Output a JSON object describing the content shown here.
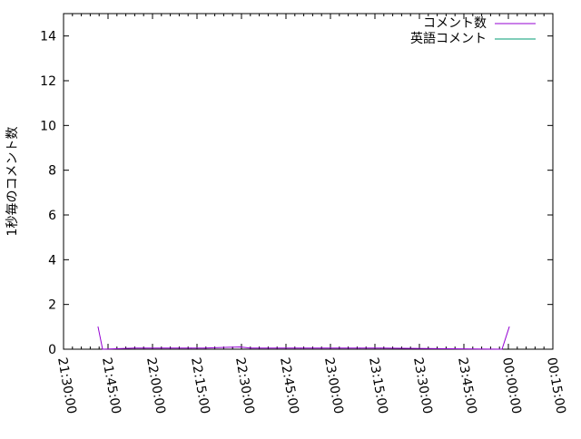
{
  "chart_data": {
    "type": "line",
    "title": "",
    "xlabel": "",
    "ylabel": "1秒毎のコメント数",
    "xlim": [
      "21:30:00",
      "00:15:00"
    ],
    "ylim": [
      0,
      15
    ],
    "x_ticks": [
      "21:30:00",
      "21:45:00",
      "22:00:00",
      "22:15:00",
      "22:30:00",
      "22:45:00",
      "23:00:00",
      "23:15:00",
      "23:30:00",
      "23:45:00",
      "00:00:00",
      "00:15:00"
    ],
    "y_ticks": [
      "0",
      "2",
      "4",
      "6",
      "8",
      "10",
      "12",
      "14"
    ],
    "grid": false,
    "legend": "top-right",
    "series": [
      {
        "name": "コメント数",
        "color": "#9400d3",
        "points": [
          [
            "21:41:38",
            1
          ],
          [
            "21:43:10",
            0
          ],
          [
            "21:54:00",
            0.05
          ],
          [
            "21:57:30",
            0.05
          ],
          [
            "22:06:00",
            0.05
          ],
          [
            "22:13:00",
            0.05
          ],
          [
            "22:17:30",
            0.05
          ],
          [
            "22:29:30",
            0.1
          ],
          [
            "22:33:00",
            0.05
          ],
          [
            "22:50:00",
            0.05
          ],
          [
            "22:57:00",
            0.05
          ],
          [
            "23:10:00",
            0.05
          ],
          [
            "23:17:00",
            0.05
          ],
          [
            "23:57:52",
            0
          ],
          [
            "00:00:18",
            1
          ]
        ]
      },
      {
        "name": "英語コメント",
        "color": "#009e73",
        "points": []
      }
    ]
  }
}
